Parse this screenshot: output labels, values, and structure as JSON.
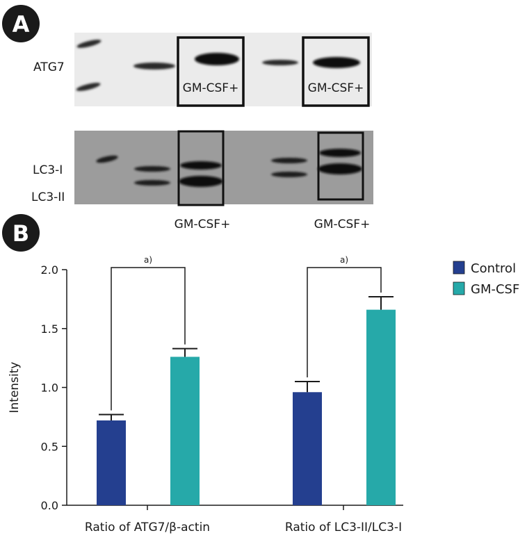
{
  "panel_a": {
    "label": "A",
    "atg7_label": "ATG7",
    "atg7_box1": "GM-CSF+",
    "atg7_box2": "GM-CSF+",
    "lc3i_label": "LC3-I",
    "lc3ii_label": "LC3-II",
    "lc3_caption1": "GM-CSF+",
    "lc3_caption2": "GM-CSF+"
  },
  "panel_b": {
    "label": "B"
  },
  "colors": {
    "control": "#243f8f",
    "gmcsf": "#26a9a9",
    "badge": "#1a1a1a",
    "axis": "#1a1a1a"
  },
  "chart_data": {
    "type": "bar",
    "title": "",
    "xlabel": "",
    "ylabel": "Intensity",
    "ylim": [
      0,
      2.0
    ],
    "yticks": [
      0.0,
      0.5,
      1.0,
      1.5,
      2.0
    ],
    "ytick_labels": [
      "0.0",
      "0.5",
      "1.0",
      "1.5",
      "2.0"
    ],
    "categories": [
      "Ratio of ATG7/β-actin",
      "Ratio of LC3-II/LC3-I"
    ],
    "series": [
      {
        "name": "Control",
        "values": [
          0.72,
          0.96
        ],
        "errors": [
          0.05,
          0.09
        ]
      },
      {
        "name": "GM-CSF",
        "values": [
          1.26,
          1.66
        ],
        "errors": [
          0.07,
          0.11
        ]
      }
    ],
    "annotations": [
      {
        "text": "a)",
        "group": 0
      },
      {
        "text": "a)",
        "group": 1
      }
    ],
    "legend": {
      "position": "top-right",
      "entries": [
        "Control",
        "GM-CSF"
      ]
    }
  }
}
